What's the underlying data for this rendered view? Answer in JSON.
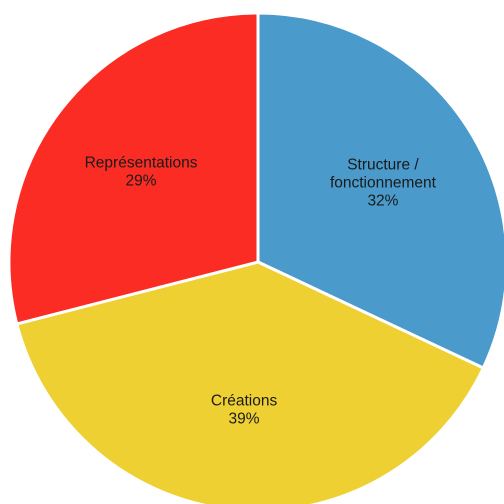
{
  "chart_data": {
    "type": "pie",
    "title": "",
    "slices": [
      {
        "label_lines": [
          "Structure /",
          "fonctionnement"
        ],
        "percent_label": "32%",
        "value": 32,
        "color": "#4a9acb"
      },
      {
        "label_lines": [
          "Créations"
        ],
        "percent_label": "39%",
        "value": 39,
        "color": "#efd032"
      },
      {
        "label_lines": [
          "Représentations"
        ],
        "percent_label": "29%",
        "value": 29,
        "color": "#fb2c23"
      }
    ],
    "start_angle": "12 o'clock",
    "direction": "clockwise",
    "legend": "none",
    "slice_border_color": "#ffffff"
  }
}
